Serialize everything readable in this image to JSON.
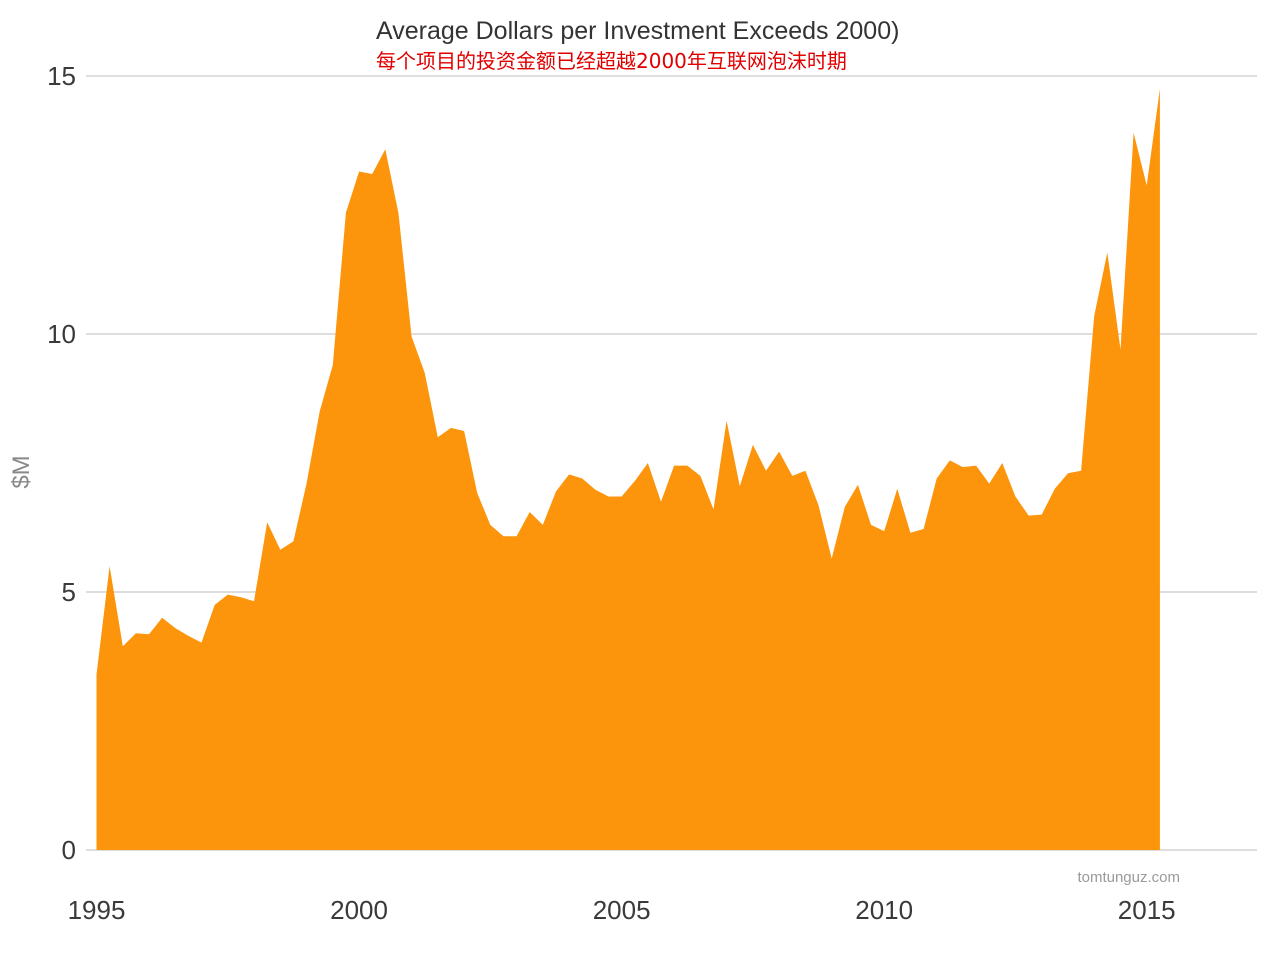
{
  "chart_data": {
    "type": "area",
    "title": "Average Dollars per Investment Exceeds 2000)",
    "subtitle": "每个项目的投资金额已经超越2000年互联网泡沫时期",
    "ylabel": "$M",
    "xlabel": "",
    "ylim": [
      0,
      15
    ],
    "xlim": [
      1994.8,
      2017.1
    ],
    "y_ticks": [
      0,
      5,
      10,
      15
    ],
    "x_ticks": [
      1995,
      2000,
      2005,
      2010,
      2015
    ],
    "grid": true,
    "color": "#fc950c",
    "watermark": "tomtunguz.com",
    "series": [
      {
        "x": [
          1995.0,
          1995.25,
          1995.5,
          1995.75,
          1996.0,
          1996.25,
          1996.5,
          1996.75,
          1997.0,
          1997.25,
          1997.5,
          1997.75,
          1998.0,
          1998.25,
          1998.5,
          1998.75,
          1999.0,
          1999.25,
          1999.5,
          1999.75,
          2000.0,
          2000.25,
          2000.5,
          2000.75,
          2001.0,
          2001.25,
          2001.5,
          2001.75,
          2002.0,
          2002.25,
          2002.5,
          2002.75,
          2003.0,
          2003.25,
          2003.5,
          2003.75,
          2004.0,
          2004.25,
          2004.5,
          2004.75,
          2005.0,
          2005.25,
          2005.5,
          2005.75,
          2006.0,
          2006.25,
          2006.5,
          2006.75,
          2007.0,
          2007.25,
          2007.5,
          2007.75,
          2008.0,
          2008.25,
          2008.5,
          2008.75,
          2009.0,
          2009.25,
          2009.5,
          2009.75,
          2010.0,
          2010.25,
          2010.5,
          2010.75,
          2011.0,
          2011.25,
          2011.5,
          2011.75,
          2012.0,
          2012.25,
          2012.5,
          2012.75,
          2013.0,
          2013.25,
          2013.5,
          2013.75,
          2014.0,
          2014.25,
          2014.5,
          2014.75,
          2015.0,
          2015.25
        ],
        "values": [
          3.4,
          5.5,
          3.95,
          4.2,
          4.18,
          4.5,
          4.3,
          4.15,
          4.02,
          4.75,
          4.95,
          4.9,
          4.82,
          6.35,
          5.82,
          5.98,
          7.1,
          8.5,
          9.4,
          12.35,
          13.15,
          13.1,
          13.58,
          12.35,
          9.95,
          9.25,
          8.0,
          8.18,
          8.12,
          6.92,
          6.3,
          6.08,
          6.08,
          6.55,
          6.3,
          6.95,
          7.28,
          7.2,
          6.98,
          6.85,
          6.85,
          7.15,
          7.5,
          6.75,
          7.45,
          7.45,
          7.25,
          6.6,
          8.32,
          7.05,
          7.85,
          7.35,
          7.72,
          7.25,
          7.35,
          6.68,
          5.65,
          6.65,
          7.08,
          6.3,
          6.18,
          7.0,
          6.15,
          6.22,
          7.2,
          7.55,
          7.42,
          7.45,
          7.1,
          7.5,
          6.85,
          6.48,
          6.5,
          7.0,
          7.3,
          7.35,
          10.35,
          11.58,
          9.7,
          13.9,
          12.88,
          14.75
        ]
      }
    ]
  }
}
